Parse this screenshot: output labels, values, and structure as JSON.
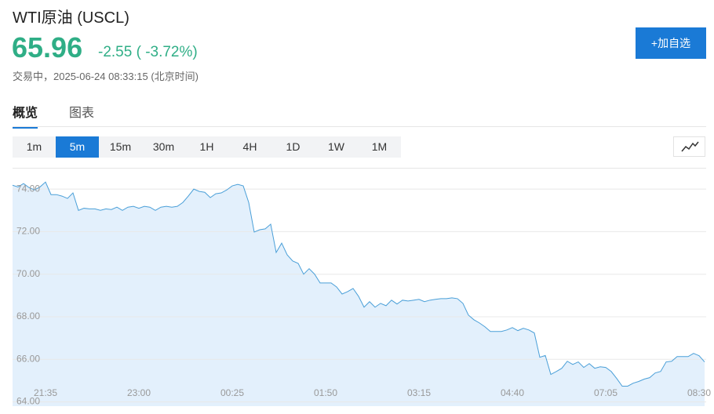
{
  "header": {
    "title": "WTI原油 (USCL)",
    "price": "65.96",
    "change": "-2.55 ( -3.72%)",
    "status": "交易中，2025-06-24 08:33:15 (北京时间)",
    "button": "+加自选"
  },
  "tabs": [
    "概览",
    "图表"
  ],
  "active_tab": 0,
  "intervals": [
    "1m",
    "5m",
    "15m",
    "30m",
    "1H",
    "4H",
    "1D",
    "1W",
    "1M"
  ],
  "active_interval": 1,
  "chart_data": {
    "type": "area",
    "color": "#4a9fd8",
    "fill": "#e3f0fc",
    "grid": true,
    "ylim": [
      63.8,
      75
    ],
    "yticks": [
      {
        "value": 64,
        "label": "64.00"
      },
      {
        "value": 66,
        "label": "66.00"
      },
      {
        "value": 68,
        "label": "68.00"
      },
      {
        "value": 70,
        "label": "70.00"
      },
      {
        "value": 72,
        "label": "72.00"
      },
      {
        "value": 74,
        "label": "74.00"
      }
    ],
    "categories": [
      null,
      null,
      null,
      null,
      null,
      null,
      "21:35",
      null,
      null,
      null,
      null,
      null,
      null,
      null,
      null,
      null,
      null,
      null,
      null,
      null,
      null,
      null,
      null,
      "23:00",
      null,
      null,
      null,
      null,
      null,
      null,
      null,
      null,
      null,
      null,
      null,
      null,
      null,
      null,
      null,
      null,
      "00:25",
      null,
      null,
      null,
      null,
      null,
      null,
      null,
      null,
      null,
      null,
      null,
      null,
      null,
      null,
      null,
      null,
      "01:50",
      null,
      null,
      null,
      null,
      null,
      null,
      null,
      null,
      null,
      null,
      null,
      null,
      null,
      null,
      null,
      null,
      "03:15",
      null,
      null,
      null,
      null,
      null,
      null,
      null,
      null,
      null,
      null,
      null,
      null,
      null,
      null,
      null,
      null,
      "04:40",
      null,
      null,
      null,
      null,
      null,
      null,
      null,
      null,
      null,
      null,
      null,
      null,
      null,
      null,
      null,
      null,
      "07:05",
      null,
      null,
      null,
      null,
      null,
      null,
      null,
      null,
      null,
      null,
      null,
      null,
      null,
      null,
      null,
      null,
      "08:30",
      null
    ],
    "values": [
      74.18,
      74.1,
      74.26,
      74.07,
      73.96,
      74.1,
      74.33,
      73.74,
      73.74,
      73.67,
      73.56,
      73.82,
      73.0,
      73.1,
      73.07,
      73.07,
      73.0,
      73.07,
      73.04,
      73.15,
      73.0,
      73.15,
      73.19,
      73.1,
      73.19,
      73.15,
      73.0,
      73.15,
      73.19,
      73.15,
      73.19,
      73.37,
      73.67,
      74.0,
      73.89,
      73.85,
      73.6,
      73.78,
      73.82,
      73.96,
      74.15,
      74.22,
      74.15,
      73.37,
      71.98,
      72.09,
      72.13,
      72.35,
      71.02,
      71.46,
      70.91,
      70.62,
      70.51,
      70.0,
      70.26,
      70.0,
      69.59,
      69.59,
      69.59,
      69.4,
      69.07,
      69.18,
      69.33,
      68.96,
      68.45,
      68.71,
      68.45,
      68.63,
      68.52,
      68.78,
      68.6,
      68.78,
      68.74,
      68.78,
      68.82,
      68.71,
      68.78,
      68.82,
      68.85,
      68.85,
      68.89,
      68.85,
      68.63,
      68.08,
      67.86,
      67.71,
      67.53,
      67.31,
      67.31,
      67.31,
      67.38,
      67.49,
      67.35,
      67.46,
      67.38,
      67.24,
      66.1,
      66.18,
      65.29,
      65.43,
      65.58,
      65.91,
      65.76,
      65.88,
      65.62,
      65.8,
      65.58,
      65.65,
      65.62,
      65.43,
      65.1,
      64.74,
      64.74,
      64.88,
      64.96,
      65.07,
      65.14,
      65.36,
      65.43,
      65.88,
      65.91,
      66.13,
      66.13,
      66.13,
      66.28,
      66.17,
      65.88
    ]
  }
}
